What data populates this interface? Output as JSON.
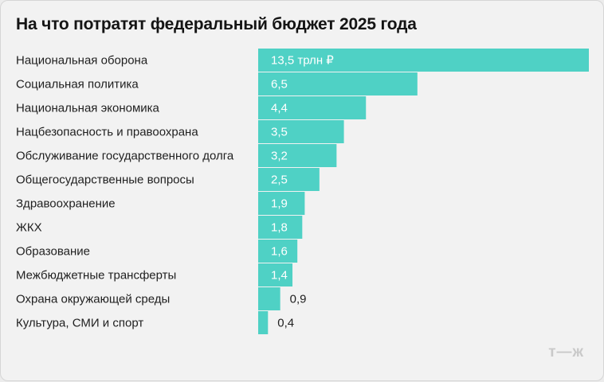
{
  "title": "На что потратят федеральный бюджет 2025 года",
  "logo_text": "т—ж",
  "colors": {
    "bar": "#4fd1c5",
    "background": "#f2f2f2",
    "text": "#1f1f1f",
    "label_inside": "#ffffff"
  },
  "chart_data": {
    "type": "bar",
    "orientation": "horizontal",
    "title": "На что потратят федеральный бюджет 2025 года",
    "unit": "трлн ₽",
    "categories": [
      "Национальная оборона",
      "Социальная политика",
      "Национальная экономика",
      "Нацбезопасность и правоохрана",
      "Обслуживание государственного долга",
      "Общегосударственные вопросы",
      "Здравоохранение",
      "ЖКХ",
      "Образование",
      "Межбюджетные трансферты",
      "Охрана окружающей среды",
      "Культура, СМИ и спорт"
    ],
    "values": [
      13.5,
      6.5,
      4.4,
      3.5,
      3.2,
      2.5,
      1.9,
      1.8,
      1.6,
      1.4,
      0.9,
      0.4
    ],
    "value_labels": [
      "13,5 трлн ₽",
      "6,5",
      "4,4",
      "3,5",
      "3,2",
      "2,5",
      "1,9",
      "1,8",
      "1,6",
      "1,4",
      "0,9",
      "0,4"
    ],
    "xlim": [
      0,
      13.5
    ],
    "grid": false,
    "legend": "none"
  }
}
